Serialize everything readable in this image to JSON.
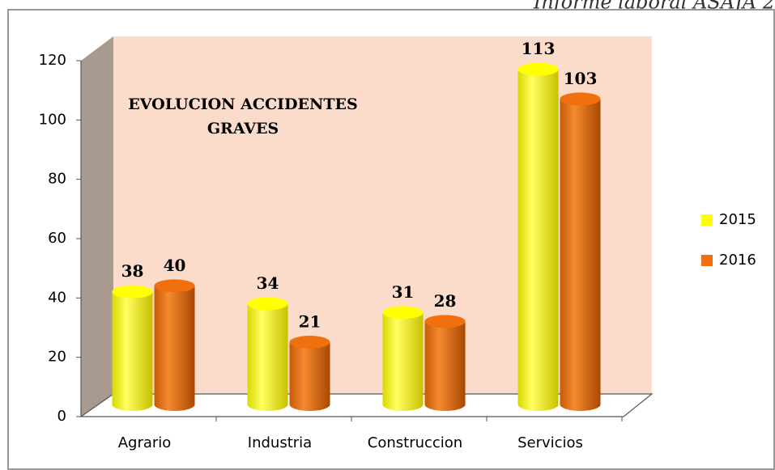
{
  "header": {
    "right": "Informe laboral ASAJA 2"
  },
  "chart_data": {
    "type": "bar3d",
    "title": [
      "EVOLUCION ACCIDENTES",
      "GRAVES"
    ],
    "categories": [
      "Agrario",
      "Industria",
      "Construccion",
      "Servicios"
    ],
    "series": [
      {
        "name": "2015",
        "color": "#ffff00",
        "values": [
          38,
          34,
          31,
          113
        ]
      },
      {
        "name": "2016",
        "color": "#f07010",
        "values": [
          40,
          21,
          28,
          103
        ]
      }
    ],
    "ylim": [
      0,
      120
    ],
    "yticks": [
      0,
      20,
      40,
      60,
      80,
      100,
      120
    ],
    "legend": "right"
  }
}
